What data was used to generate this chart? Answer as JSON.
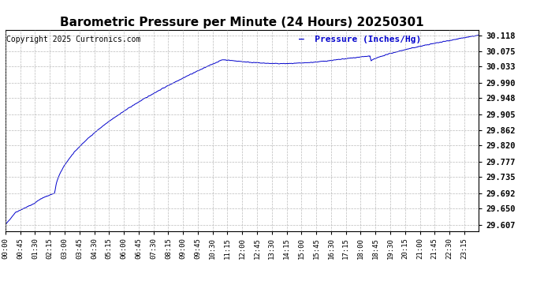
{
  "title": "Barometric Pressure per Minute (24 Hours) 20250301",
  "copyright_text": "Copyright 2025 Curtronics.com",
  "legend_label": "Pressure (Inches/Hg)",
  "line_color": "#0000cc",
  "background_color": "#ffffff",
  "grid_color": "#aaaaaa",
  "yticks": [
    29.607,
    29.65,
    29.692,
    29.735,
    29.777,
    29.82,
    29.862,
    29.905,
    29.948,
    29.99,
    30.033,
    30.075,
    30.118
  ],
  "ytick_labels": [
    "29.607",
    "29.650",
    "29.692",
    "29.735",
    "29.777",
    "29.820",
    "29.862",
    "29.905",
    "29.948",
    "29.990",
    "30.033",
    "30.075",
    "30.118"
  ],
  "ylim": [
    29.59,
    30.133
  ],
  "xtick_labels": [
    "00:00",
    "00:45",
    "01:30",
    "02:15",
    "03:00",
    "03:45",
    "04:30",
    "05:15",
    "06:00",
    "06:45",
    "07:30",
    "08:15",
    "09:00",
    "09:45",
    "10:30",
    "11:15",
    "12:00",
    "12:45",
    "13:30",
    "14:15",
    "15:00",
    "15:45",
    "16:30",
    "17:15",
    "18:00",
    "18:45",
    "19:30",
    "20:15",
    "21:00",
    "21:45",
    "22:30",
    "23:15"
  ],
  "title_fontsize": 11,
  "copyright_fontsize": 7,
  "legend_fontsize": 8,
  "ytick_fontsize": 7.5,
  "xtick_fontsize": 6.5
}
